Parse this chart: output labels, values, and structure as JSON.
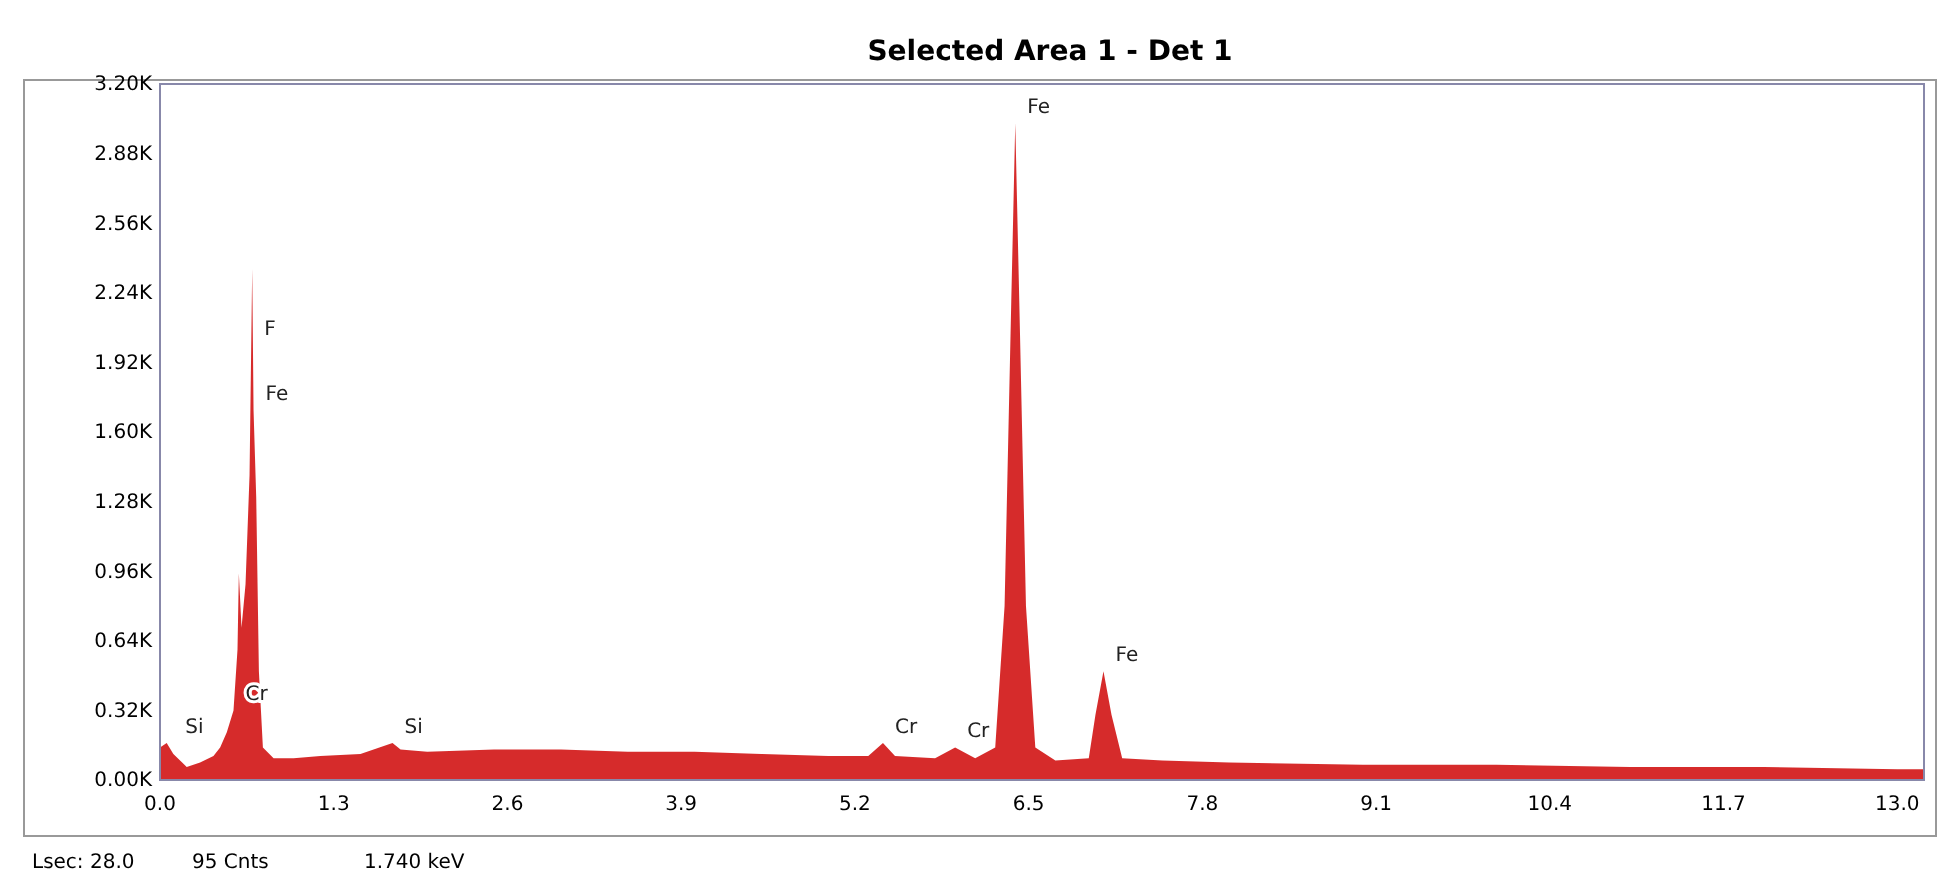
{
  "chart_data": {
    "type": "area",
    "title": "Selected Area 1 - Det 1",
    "x": [
      0.0,
      0.05,
      0.1,
      0.2,
      0.3,
      0.4,
      0.45,
      0.5,
      0.55,
      0.58,
      0.59,
      0.61,
      0.64,
      0.67,
      0.69,
      0.7,
      0.72,
      0.74,
      0.77,
      0.85,
      1.0,
      1.2,
      1.5,
      1.74,
      1.8,
      2.0,
      2.5,
      3.0,
      3.5,
      4.0,
      4.5,
      5.0,
      5.3,
      5.41,
      5.5,
      5.8,
      5.95,
      6.1,
      6.25,
      6.32,
      6.37,
      6.4,
      6.43,
      6.48,
      6.55,
      6.7,
      6.95,
      7.0,
      7.06,
      7.12,
      7.2,
      7.5,
      8.0,
      9.0,
      10.0,
      11.0,
      12.0,
      13.0,
      13.2
    ],
    "series": [
      {
        "color": "#d42020",
        "values": [
          150,
          170,
          120,
          60,
          80,
          110,
          150,
          220,
          320,
          600,
          950,
          700,
          900,
          1400,
          2350,
          1700,
          1300,
          500,
          150,
          100,
          100,
          110,
          120,
          170,
          140,
          130,
          140,
          140,
          130,
          130,
          120,
          110,
          110,
          170,
          110,
          100,
          150,
          100,
          150,
          800,
          2200,
          3020,
          2200,
          800,
          150,
          90,
          100,
          300,
          500,
          300,
          100,
          90,
          80,
          70,
          70,
          60,
          60,
          50,
          50
        ]
      }
    ],
    "xlim": [
      0,
      13.2
    ],
    "ylim": [
      0,
      3200
    ],
    "xticks": [
      {
        "value": 0,
        "label": "0.0"
      },
      1.3,
      2.6,
      3.9,
      5.2,
      6.5,
      7.8,
      9.1,
      10.4,
      11.7,
      {
        "value": 13,
        "label": "13.0"
      }
    ],
    "yticks": [
      {
        "value": 0,
        "label": "0.00K"
      },
      {
        "value": 320,
        "label": "0.32K"
      },
      {
        "value": 640,
        "label": "0.64K"
      },
      {
        "value": 960,
        "label": "0.96K"
      },
      {
        "value": 1280,
        "label": "1.28K"
      },
      {
        "value": 1600,
        "label": "1.60K"
      },
      {
        "value": 1920,
        "label": "1.92K"
      },
      {
        "value": 2240,
        "label": "2.24K"
      },
      {
        "value": 2560,
        "label": "2.56K"
      },
      {
        "value": 2880,
        "label": "2.88K"
      },
      {
        "value": 3200,
        "label": "3.20K"
      }
    ],
    "grid": false,
    "annotations": [
      {
        "text": "Si",
        "x": 0.1,
        "y": 170
      },
      {
        "text": "Cr",
        "x": 0.55,
        "y": 320
      },
      {
        "text": "F",
        "x": 0.69,
        "y": 2000
      },
      {
        "text": "Fe",
        "x": 0.7,
        "y": 1700
      },
      {
        "text": "Si",
        "x": 1.74,
        "y": 170
      },
      {
        "text": "Cr",
        "x": 5.41,
        "y": 170
      },
      {
        "text": "Cr",
        "x": 5.95,
        "y": 150
      },
      {
        "text": "Fe",
        "x": 6.4,
        "y": 3020
      },
      {
        "text": "Fe",
        "x": 7.06,
        "y": 500
      },
      "Lsec: 28.0",
      "95 Cnts",
      "1.740 keV"
    ]
  }
}
